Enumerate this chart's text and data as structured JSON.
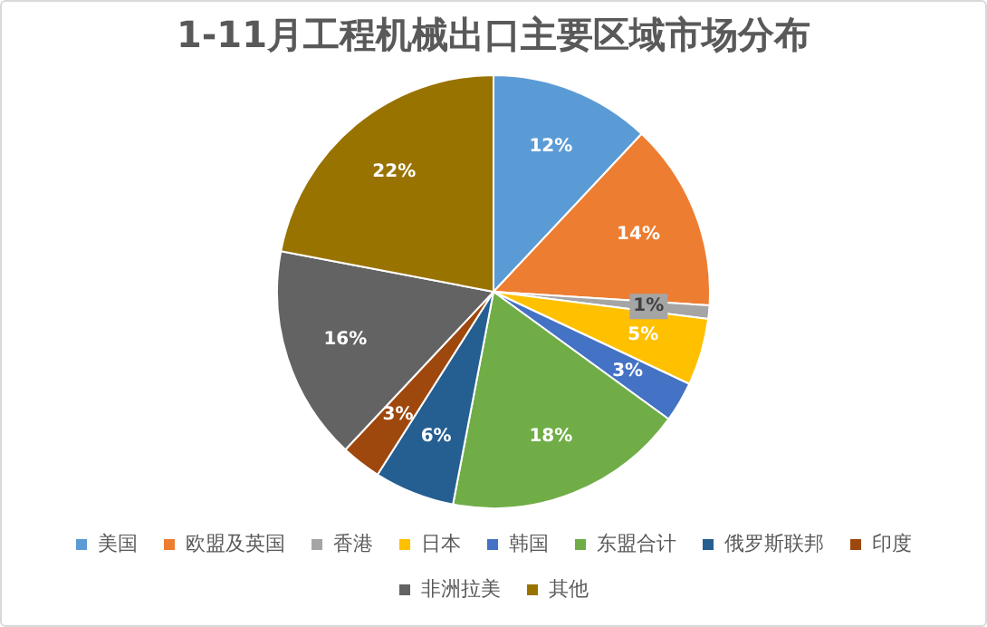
{
  "chart_data": {
    "type": "pie",
    "title": "1-11月工程机械出口主要区域市场分布",
    "categories": [
      "美国",
      "欧盟及英国",
      "香港",
      "日本",
      "韩国",
      "东盟合计",
      "俄罗斯联邦",
      "印度",
      "非洲拉美",
      "其他"
    ],
    "values": [
      12,
      14,
      1,
      5,
      3,
      18,
      6,
      3,
      16,
      22
    ],
    "value_labels": [
      "12%",
      "14%",
      "1%",
      "5%",
      "3%",
      "18%",
      "6%",
      "3%",
      "16%",
      "22%"
    ],
    "colors": [
      "#5b9bd5",
      "#ed7d31",
      "#a5a5a5",
      "#ffc000",
      "#4472c4",
      "#70ad47",
      "#255e91",
      "#9e480e",
      "#636363",
      "#997300"
    ],
    "legend": "bottom"
  }
}
